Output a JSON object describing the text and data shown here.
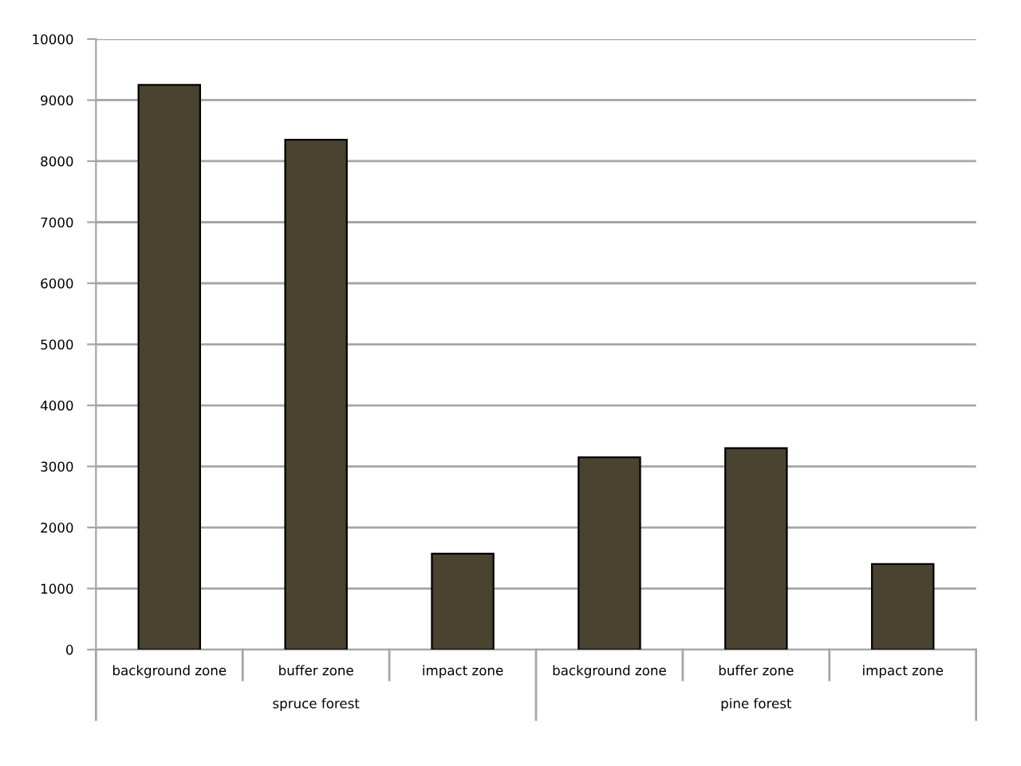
{
  "chart_data": {
    "type": "bar",
    "categories": [
      "background zone",
      "buffer zone",
      "impact zone",
      "background zone",
      "buffer zone",
      "impact zone"
    ],
    "values": [
      9250,
      8350,
      1570,
      3150,
      3300,
      1400
    ],
    "color": "#4a4330",
    "ylim": [
      0,
      10000
    ],
    "yticks": [
      0,
      1000,
      2000,
      3000,
      4000,
      5000,
      6000,
      7000,
      8000,
      9000,
      10000
    ],
    "grid": "y",
    "annotations": [
      "spruce forest",
      "pine forest"
    ]
  }
}
